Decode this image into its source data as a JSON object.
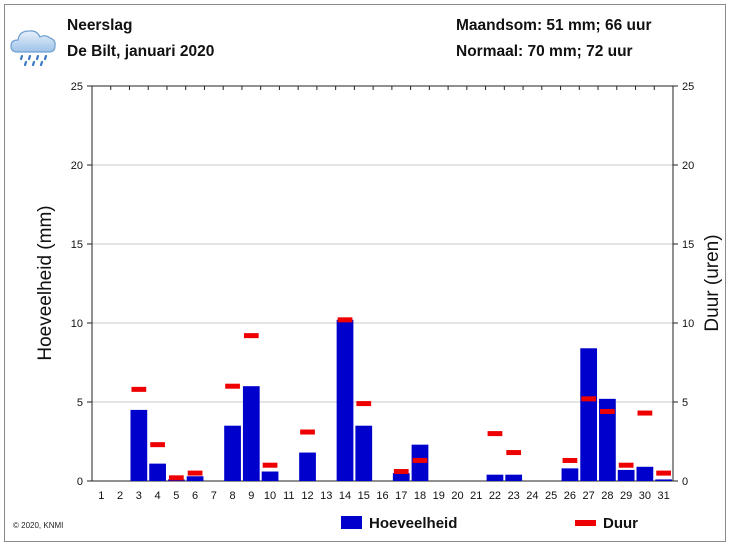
{
  "header": {
    "title": "Neerslag",
    "subtitle": "De Bilt, januari 2020",
    "monthly_total": "Maandsom: 51 mm; 66 uur",
    "normal": "Normaal: 70 mm; 72 uur"
  },
  "icon": "rain-cloud-icon",
  "copyright": "© 2020, KNMI",
  "colors": {
    "amount": "#0000cc",
    "duration": "#ee0000",
    "grid": "#c8c8c8"
  },
  "chart_data": {
    "type": "bar",
    "title": "Neerslag",
    "ylabel_left": "Hoeveelheid (mm)",
    "ylabel_right": "Duur (uren)",
    "ylim_left": [
      0,
      25
    ],
    "ylim_right": [
      0,
      25
    ],
    "yticks": [
      0,
      5,
      10,
      15,
      20,
      25
    ],
    "grid": true,
    "legend_position": "bottom",
    "categories": [
      "1",
      "2",
      "3",
      "4",
      "5",
      "6",
      "7",
      "8",
      "9",
      "10",
      "11",
      "12",
      "13",
      "14",
      "15",
      "16",
      "17",
      "18",
      "19",
      "20",
      "21",
      "22",
      "23",
      "24",
      "25",
      "26",
      "27",
      "28",
      "29",
      "30",
      "31"
    ],
    "series": [
      {
        "name": "Hoeveelheid",
        "kind": "bar",
        "values": [
          0,
          0,
          4.5,
          1.1,
          0.1,
          0.3,
          0,
          3.5,
          6.0,
          0.6,
          0,
          1.8,
          0,
          10.2,
          3.5,
          0,
          0.5,
          2.3,
          0,
          0,
          0,
          0.4,
          0.4,
          0,
          0,
          0.8,
          8.4,
          5.2,
          0.7,
          0.9,
          0.1
        ]
      },
      {
        "name": "Duur",
        "kind": "dash",
        "values": [
          null,
          null,
          5.8,
          2.3,
          0.2,
          0.5,
          null,
          6.0,
          9.2,
          1.0,
          null,
          3.1,
          null,
          10.2,
          4.9,
          null,
          0.6,
          1.3,
          null,
          null,
          null,
          3.0,
          1.8,
          null,
          null,
          1.3,
          5.2,
          4.4,
          1.0,
          4.3,
          0.5
        ]
      }
    ]
  }
}
